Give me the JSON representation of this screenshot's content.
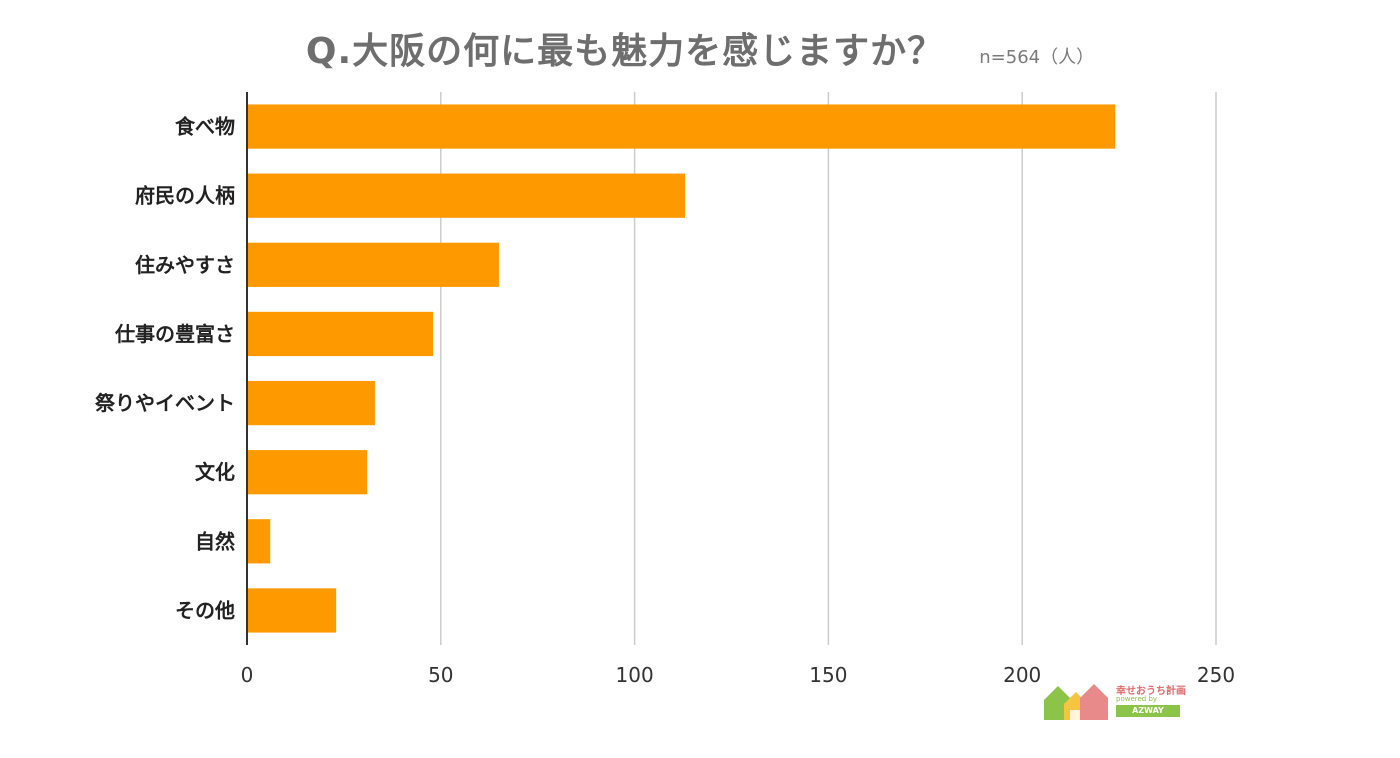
{
  "title": "Q.大阪の何に最も魅力を感じますか？",
  "subtitle": "n=564（人）",
  "chart_data": {
    "type": "bar",
    "orientation": "horizontal",
    "categories": [
      "食べ物",
      "府民の人柄",
      "住みやすさ",
      "仕事の豊富さ",
      "祭りやイベント",
      "文化",
      "自然",
      "その他"
    ],
    "values": [
      224,
      113,
      65,
      48,
      33,
      31,
      6,
      23
    ],
    "xlim": [
      0,
      250
    ],
    "xticks": [
      0,
      50,
      100,
      150,
      200,
      250
    ],
    "grid": true,
    "bar_color": "#ff9900",
    "grid_color": "#cccccc"
  },
  "logo": {
    "name": "幸せおうち計画",
    "sub": "powered by",
    "badge": "AZWAY"
  }
}
